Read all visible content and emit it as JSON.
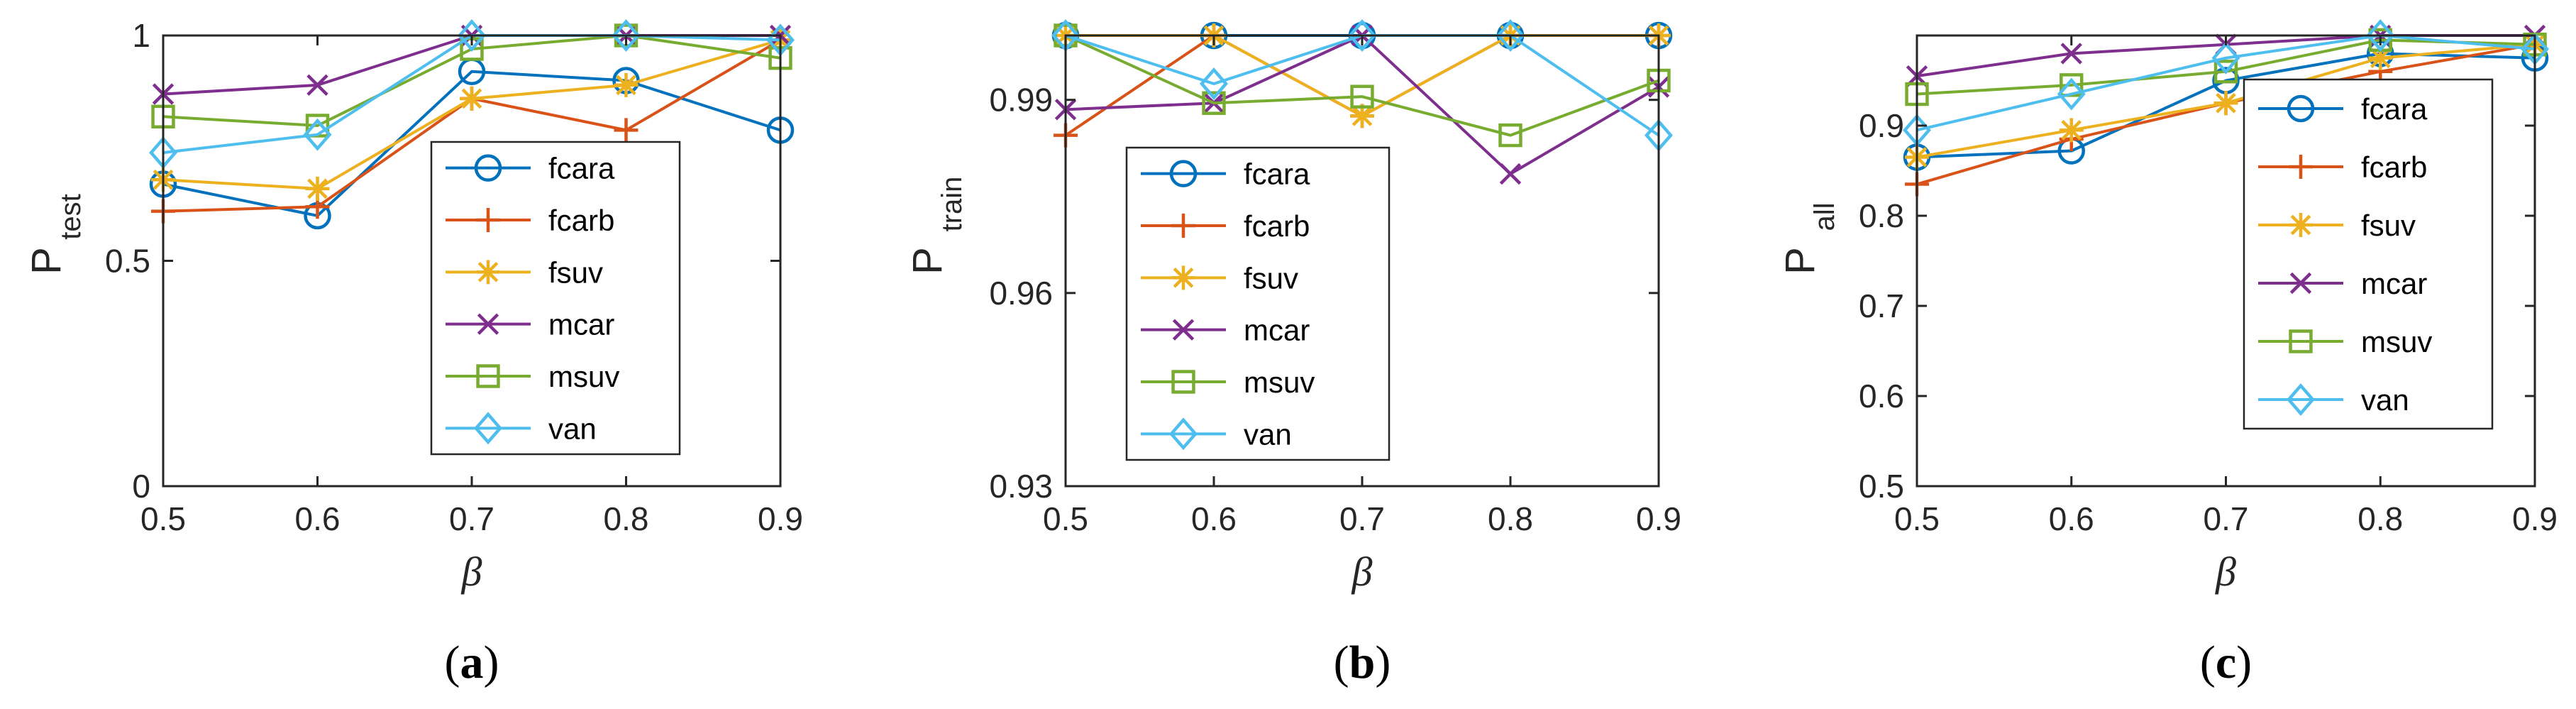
{
  "colors": {
    "fcara": "#0072BD",
    "fcarb": "#D95319",
    "fsuv": "#EDB120",
    "mcar": "#7E2F8E",
    "msuv": "#77AC30",
    "van": "#4DBEEE"
  },
  "chart_data": [
    {
      "type": "line",
      "panel_label": "a",
      "xlabel": "β",
      "ylabel_main": "P",
      "ylabel_sub": "test",
      "x": [
        0.5,
        0.6,
        0.7,
        0.8,
        0.9
      ],
      "x_tick_labels": [
        "0.5",
        "0.6",
        "0.7",
        "0.8",
        "0.9"
      ],
      "xlim": [
        0.5,
        0.9
      ],
      "ylim": [
        0,
        1
      ],
      "y_ticks": [
        0,
        0.5,
        1
      ],
      "y_tick_labels": [
        "0",
        "0.5",
        "1"
      ],
      "legend_position": "lower-right",
      "series": [
        {
          "name": "fcara",
          "marker": "circle",
          "values": [
            0.67,
            0.6,
            0.92,
            0.9,
            0.79
          ]
        },
        {
          "name": "fcarb",
          "marker": "plus",
          "values": [
            0.61,
            0.62,
            0.86,
            0.79,
            0.99
          ]
        },
        {
          "name": "fsuv",
          "marker": "star",
          "values": [
            0.68,
            0.66,
            0.86,
            0.89,
            0.99
          ]
        },
        {
          "name": "mcar",
          "marker": "x",
          "values": [
            0.87,
            0.89,
            1.0,
            1.0,
            1.0
          ]
        },
        {
          "name": "msuv",
          "marker": "square",
          "values": [
            0.82,
            0.8,
            0.97,
            1.0,
            0.95
          ]
        },
        {
          "name": "van",
          "marker": "diamond",
          "values": [
            0.74,
            0.78,
            1.0,
            1.0,
            0.99
          ]
        }
      ]
    },
    {
      "type": "line",
      "panel_label": "b",
      "xlabel": "β",
      "ylabel_main": "P",
      "ylabel_sub": "train",
      "x": [
        0.5,
        0.6,
        0.7,
        0.8,
        0.9
      ],
      "x_tick_labels": [
        "0.5",
        "0.6",
        "0.7",
        "0.8",
        "0.9"
      ],
      "xlim": [
        0.5,
        0.9
      ],
      "ylim": [
        0.93,
        1.0
      ],
      "y_ticks": [
        0.93,
        0.96,
        0.99
      ],
      "y_tick_labels": [
        "0.93",
        "0.96",
        "0.99"
      ],
      "legend_position": "lower-left",
      "series": [
        {
          "name": "fcara",
          "marker": "circle",
          "values": [
            1.0,
            1.0,
            1.0,
            1.0,
            1.0
          ]
        },
        {
          "name": "fcarb",
          "marker": "plus",
          "values": [
            0.9845,
            1.0,
            0.9875,
            1.0,
            1.0
          ]
        },
        {
          "name": "fsuv",
          "marker": "star",
          "values": [
            1.0,
            1.0,
            0.9875,
            1.0,
            1.0
          ]
        },
        {
          "name": "mcar",
          "marker": "x",
          "values": [
            0.9885,
            0.9895,
            1.0,
            0.9785,
            0.992
          ]
        },
        {
          "name": "msuv",
          "marker": "square",
          "values": [
            1.0,
            0.9895,
            0.9905,
            0.9845,
            0.993
          ]
        },
        {
          "name": "van",
          "marker": "diamond",
          "values": [
            1.0,
            0.9925,
            1.0,
            1.0,
            0.9845
          ]
        }
      ]
    },
    {
      "type": "line",
      "panel_label": "c",
      "xlabel": "β",
      "ylabel_main": "P",
      "ylabel_sub": "all",
      "x": [
        0.5,
        0.6,
        0.7,
        0.8,
        0.9
      ],
      "x_tick_labels": [
        "0.5",
        "0.6",
        "0.7",
        "0.8",
        "0.9"
      ],
      "xlim": [
        0.5,
        0.9
      ],
      "ylim": [
        0.5,
        1.0
      ],
      "y_ticks": [
        0.5,
        0.6,
        0.7,
        0.8,
        0.9
      ],
      "y_tick_labels": [
        "0.5",
        "0.6",
        "0.7",
        "0.8",
        "0.9"
      ],
      "legend_position": "lower-right",
      "series": [
        {
          "name": "fcara",
          "marker": "circle",
          "values": [
            0.865,
            0.872,
            0.95,
            0.98,
            0.975
          ]
        },
        {
          "name": "fcarb",
          "marker": "plus",
          "values": [
            0.835,
            0.885,
            0.925,
            0.96,
            0.99
          ]
        },
        {
          "name": "fsuv",
          "marker": "star",
          "values": [
            0.865,
            0.895,
            0.925,
            0.975,
            0.99
          ]
        },
        {
          "name": "mcar",
          "marker": "x",
          "values": [
            0.955,
            0.98,
            0.99,
            1.0,
            1.0
          ]
        },
        {
          "name": "msuv",
          "marker": "square",
          "values": [
            0.935,
            0.945,
            0.96,
            0.995,
            0.99
          ]
        },
        {
          "name": "van",
          "marker": "diamond",
          "values": [
            0.895,
            0.935,
            0.975,
            1.0,
            0.985
          ]
        }
      ]
    }
  ]
}
